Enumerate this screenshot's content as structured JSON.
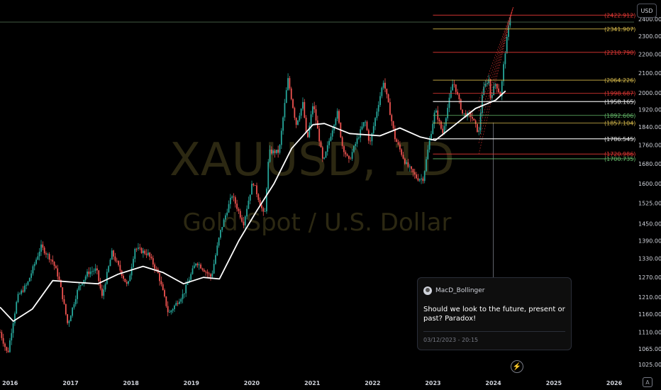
{
  "currency_label": "USD",
  "watermark": {
    "symbol": "XAUUSD, 1D",
    "name": "Gold Spot / U.S. Dollar"
  },
  "idea": {
    "author": "MacD_Bollinger",
    "text": "Should we look to the future, present or past? Paradox!",
    "date": "03/12/2023 - 20:15"
  },
  "axis_mark": "A",
  "colors": {
    "up": "#26a69a",
    "down": "#ef5350",
    "ma": "#ffffff",
    "red_level": "#e53935",
    "yellow_level": "#d4b84a",
    "green_level": "#66bb6a",
    "white_level": "#e0e0e0"
  },
  "chart_data": {
    "type": "line",
    "y_scale": "log",
    "ylim": [
      1000,
      2480
    ],
    "x_start": "2015-11-01",
    "x_end": "2026-05-01",
    "x_ticks": [
      "2016",
      "2017",
      "2018",
      "2019",
      "2020",
      "2021",
      "2022",
      "2023",
      "2024",
      "2025",
      "2026"
    ],
    "y_ticks": [
      "2400.000",
      "2300.000",
      "2200.000",
      "2100.000",
      "2000.000",
      "1920.000",
      "1840.000",
      "1760.000",
      "1680.000",
      "1600.000",
      "1525.000",
      "1450.000",
      "1390.000",
      "1330.000",
      "1270.000",
      "1210.000",
      "1160.000",
      "1110.000",
      "1065.000",
      "1025.000"
    ],
    "price_points": [
      [
        "2015-11-01",
        1110
      ],
      [
        "2015-12-17",
        1050
      ],
      [
        "2016-02-15",
        1210
      ],
      [
        "2016-04-15",
        1250
      ],
      [
        "2016-07-06",
        1370
      ],
      [
        "2016-09-15",
        1320
      ],
      [
        "2016-10-20",
        1270
      ],
      [
        "2016-12-15",
        1130
      ],
      [
        "2017-02-15",
        1235
      ],
      [
        "2017-04-15",
        1285
      ],
      [
        "2017-06-06",
        1295
      ],
      [
        "2017-07-10",
        1210
      ],
      [
        "2017-09-08",
        1350
      ],
      [
        "2017-12-12",
        1240
      ],
      [
        "2018-01-25",
        1365
      ],
      [
        "2018-04-15",
        1345
      ],
      [
        "2018-06-15",
        1280
      ],
      [
        "2018-08-16",
        1160
      ],
      [
        "2018-11-15",
        1220
      ],
      [
        "2019-01-30",
        1320
      ],
      [
        "2019-05-02",
        1270
      ],
      [
        "2019-06-25",
        1420
      ],
      [
        "2019-09-04",
        1555
      ],
      [
        "2019-11-12",
        1450
      ],
      [
        "2020-01-08",
        1610
      ],
      [
        "2020-03-19",
        1470
      ],
      [
        "2020-04-15",
        1730
      ],
      [
        "2020-06-15",
        1730
      ],
      [
        "2020-08-07",
        2070
      ],
      [
        "2020-09-25",
        1850
      ],
      [
        "2020-11-06",
        1950
      ],
      [
        "2020-11-30",
        1770
      ],
      [
        "2021-01-06",
        1950
      ],
      [
        "2021-03-08",
        1680
      ],
      [
        "2021-06-01",
        1910
      ],
      [
        "2021-06-30",
        1760
      ],
      [
        "2021-08-10",
        1690
      ],
      [
        "2021-11-16",
        1870
      ],
      [
        "2021-12-15",
        1760
      ],
      [
        "2022-03-08",
        2060
      ],
      [
        "2022-05-16",
        1790
      ],
      [
        "2022-07-21",
        1680
      ],
      [
        "2022-09-28",
        1620
      ],
      [
        "2022-11-03",
        1620
      ],
      [
        "2023-01-15",
        1920
      ],
      [
        "2023-02-28",
        1810
      ],
      [
        "2023-05-04",
        2060
      ],
      [
        "2023-06-29",
        1900
      ],
      [
        "2023-08-21",
        1890
      ],
      [
        "2023-10-05",
        1810
      ],
      [
        "2023-10-27",
        2006
      ],
      [
        "2023-12-04",
        2075
      ],
      [
        "2023-12-13",
        1975
      ],
      [
        "2024-01-15",
        2050
      ],
      [
        "2024-02-14",
        1985
      ],
      [
        "2024-03-08",
        2180
      ],
      [
        "2024-04-12",
        2420
      ]
    ],
    "ma_points": [
      [
        "2015-11-01",
        1180
      ],
      [
        "2016-01-20",
        1140
      ],
      [
        "2016-05-15",
        1175
      ],
      [
        "2016-09-15",
        1260
      ],
      [
        "2017-01-20",
        1255
      ],
      [
        "2017-06-15",
        1250
      ],
      [
        "2017-10-15",
        1280
      ],
      [
        "2018-03-15",
        1305
      ],
      [
        "2018-07-15",
        1285
      ],
      [
        "2018-11-15",
        1250
      ],
      [
        "2019-03-15",
        1270
      ],
      [
        "2019-06-20",
        1265
      ],
      [
        "2019-10-15",
        1390
      ],
      [
        "2020-01-30",
        1495
      ],
      [
        "2020-05-15",
        1600
      ],
      [
        "2020-08-30",
        1745
      ],
      [
        "2021-01-05",
        1850
      ],
      [
        "2021-03-15",
        1855
      ],
      [
        "2021-08-15",
        1810
      ],
      [
        "2022-02-15",
        1800
      ],
      [
        "2022-06-15",
        1835
      ],
      [
        "2022-10-15",
        1795
      ],
      [
        "2023-01-15",
        1780
      ],
      [
        "2023-05-15",
        1850
      ],
      [
        "2023-09-15",
        1925
      ],
      [
        "2024-01-15",
        1965
      ],
      [
        "2024-03-15",
        2010
      ]
    ],
    "levels": [
      {
        "label": "(2422.912)",
        "value": 2422.912,
        "color": "red_level",
        "start": "2023-01-01"
      },
      {
        "label": "(2341.907)",
        "value": 2341.907,
        "color": "yellow_level",
        "start": "2023-01-01"
      },
      {
        "label": "(2210.790)",
        "value": 2210.79,
        "color": "red_level",
        "start": "2023-01-01"
      },
      {
        "label": "(2064.226)",
        "value": 2064.226,
        "color": "yellow_level",
        "start": "2023-01-01"
      },
      {
        "label": "(1998.687)",
        "value": 1998.687,
        "color": "red_level",
        "start": "2023-01-01"
      },
      {
        "label": "(1958.165)",
        "value": 1958.165,
        "color": "white_level",
        "start": "2023-01-01"
      },
      {
        "label": "(1892.606)",
        "value": 1892.606,
        "color": "green_level",
        "start": "2023-01-01"
      },
      {
        "label": "(1857.104)",
        "value": 1857.104,
        "color": "yellow_level",
        "start": "2023-01-01"
      },
      {
        "label": "(1786.545)",
        "value": 1786.545,
        "color": "white_level",
        "start": "2023-01-01"
      },
      {
        "label": "(1720.986)",
        "value": 1720.986,
        "color": "red_level",
        "start": "2023-01-01"
      },
      {
        "label": "(1700.735)",
        "value": 1700.735,
        "color": "green_level",
        "start": "2023-01-01"
      }
    ],
    "horizontal_line": 2382,
    "vertical_line": "2024-01-01"
  }
}
